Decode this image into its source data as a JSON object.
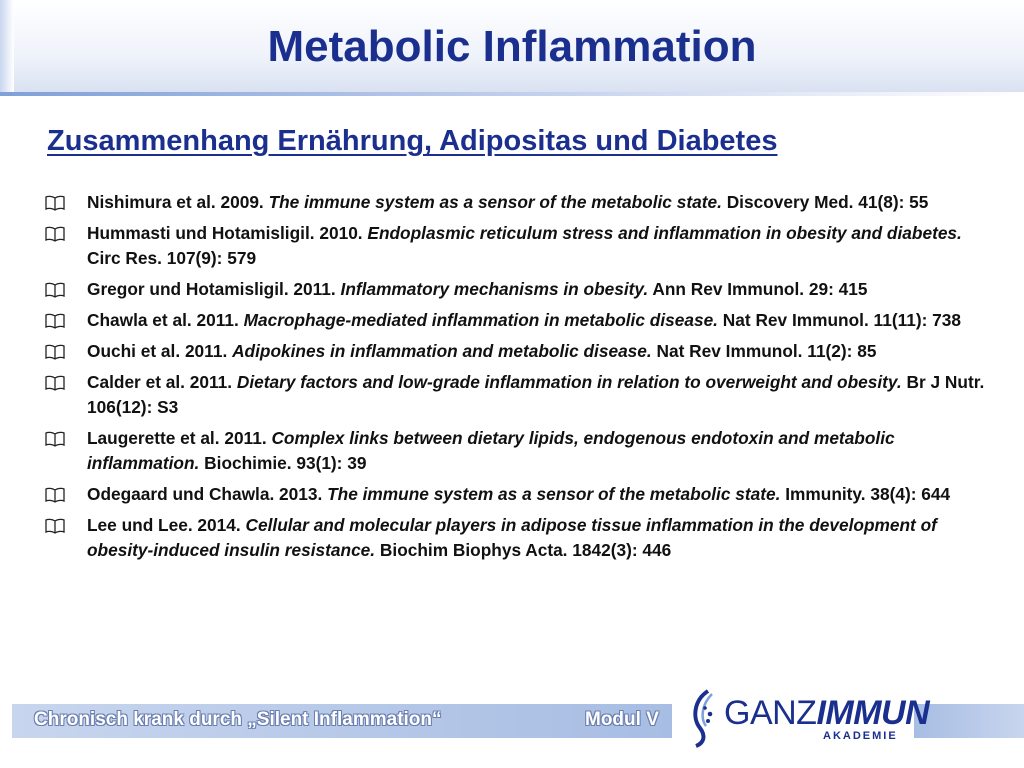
{
  "slide": {
    "title": "Metabolic Inflammation",
    "subtitle": "Zusammenhang Ernährung, Adipositas und Diabetes"
  },
  "references": [
    {
      "authors": "Nishimura et al. 2009.",
      "title": "The immune system as a sensor of the metabolic state.",
      "source": "Discovery Med. 41(8): 55"
    },
    {
      "authors": "Hummasti und Hotamisligil. 2010.",
      "title": "Endoplasmic reticulum stress and inflammation in obesity and diabetes.",
      "source": "Circ Res. 107(9): 579"
    },
    {
      "authors": "Gregor und Hotamisligil. 2011.",
      "title": "Inflammatory mechanisms in obesity.",
      "source": "Ann Rev Immunol. 29: 415"
    },
    {
      "authors": "Chawla et al. 2011.",
      "title": "Macrophage-mediated inflammation in metabolic disease.",
      "source": "Nat Rev Immunol. 11(11): 738"
    },
    {
      "authors": "Ouchi et al. 2011.",
      "title": "Adipokines in inflammation and metabolic disease.",
      "source": "Nat Rev Immunol. 11(2): 85"
    },
    {
      "authors": "Calder et al. 2011.",
      "title": "Dietary factors and low-grade inflammation in relation to overweight and obesity.",
      "source": "Br J Nutr. 106(12): S3"
    },
    {
      "authors": "Laugerette et al. 2011.",
      "title": "Complex links between dietary lipids, endogenous endotoxin and metabolic inflammation.",
      "source": "Biochimie. 93(1): 39"
    },
    {
      "authors": "Odegaard und Chawla. 2013.",
      "title": "The immune system as a sensor of the metabolic state.",
      "source": "Immunity. 38(4): 644"
    },
    {
      "authors": "Lee und Lee. 2014.",
      "title": "Cellular and molecular players in adipose tissue inflammation in the development of obesity-induced insulin resistance.",
      "source": "Biochim Biophys Acta. 1842(3): 446"
    }
  ],
  "bullet_icon": "open-book-icon",
  "footer": {
    "left_text": "Chronisch krank durch „Silent Inflammation“",
    "right_text": "Modul V"
  },
  "logo": {
    "name_part1": "GANZ",
    "name_part2": "IMMUN",
    "sub": "AKADEMIE"
  },
  "colors": {
    "title": "#1b2f8e",
    "text": "#111111",
    "footer_bar": "#a7bde3"
  }
}
